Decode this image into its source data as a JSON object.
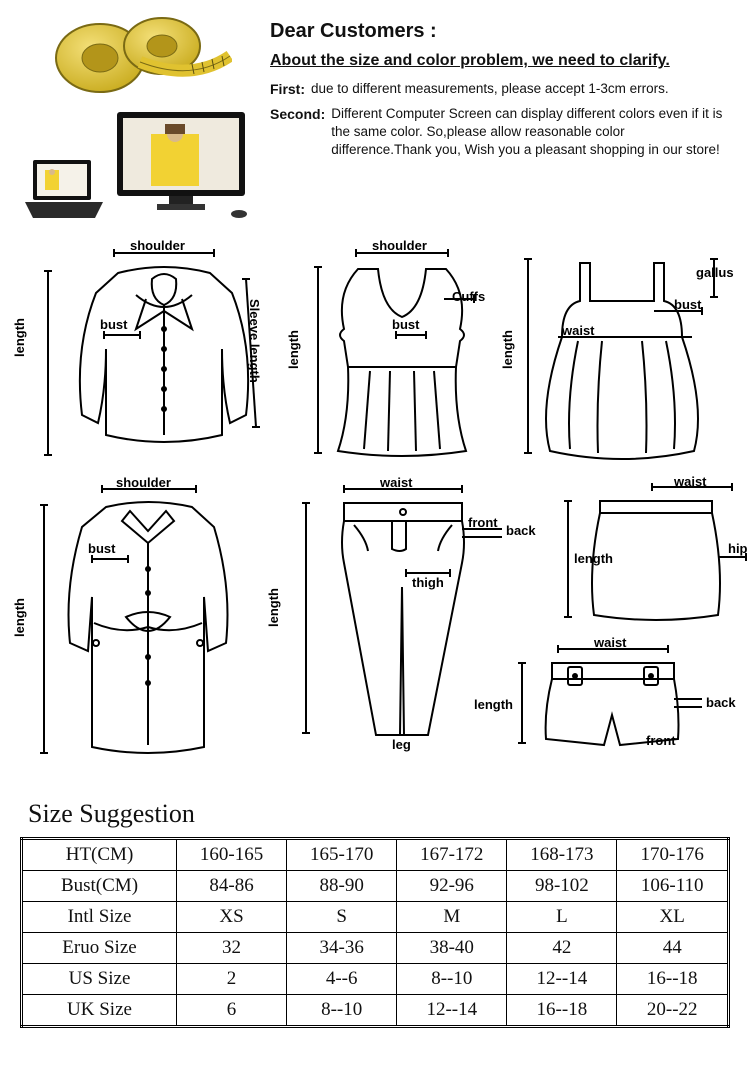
{
  "notice": {
    "greeting": "Dear Customers :",
    "clarify": "About the size and  color problem, we need to clarify.",
    "first_key": "First:",
    "first_text": "due to different measurements, please accept 1-3cm errors.",
    "second_key": "Second:",
    "second_text": "Different Computer Screen can display different colors even if it is the same color. So,please allow reasonable color difference.Thank you, Wish you a pleasant shopping in our store!"
  },
  "diagram_labels": {
    "shoulder": "shoulder",
    "bust": "bust",
    "length": "length",
    "sleeve_length": "Sleeve length",
    "cuffs": "Cuffs",
    "waist": "waist",
    "gallus": "gallus",
    "front": "front",
    "back": "back",
    "thigh": "thigh",
    "leg": "leg",
    "hip": "hip"
  },
  "size_section_title": "Size Suggestion",
  "size_table": {
    "rows": [
      [
        "HT(CM)",
        "160-165",
        "165-170",
        "167-172",
        "168-173",
        "170-176"
      ],
      [
        "Bust(CM)",
        "84-86",
        "88-90",
        "92-96",
        "98-102",
        "106-110"
      ],
      [
        "Intl Size",
        "XS",
        "S",
        "M",
        "L",
        "XL"
      ],
      [
        "Eruo Size",
        "32",
        "34-36",
        "38-40",
        "42",
        "44"
      ],
      [
        "US Size",
        "2",
        "4--6",
        "8--10",
        "12--14",
        "16--18"
      ],
      [
        "UK Size",
        "6",
        "8--10",
        "12--14",
        "16--18",
        "20--22"
      ]
    ]
  },
  "colors": {
    "tape_yellow": "#e8c931",
    "tape_dark": "#7a6a14",
    "monitor_frame": "#111111",
    "tshirt_yellow": "#f2d233",
    "background": "#ffffff",
    "text": "#111111"
  }
}
